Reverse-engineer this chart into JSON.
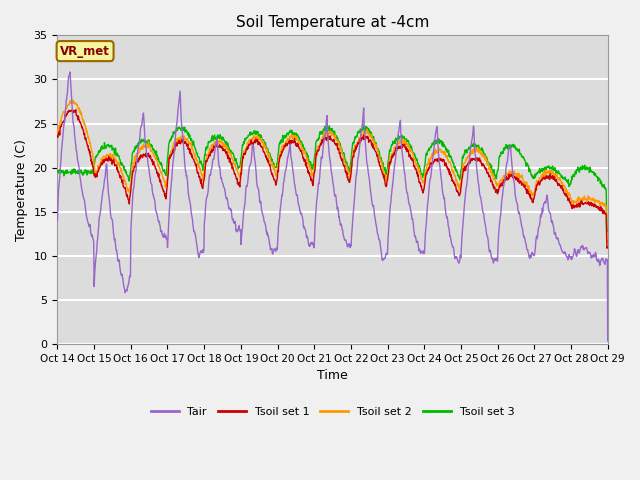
{
  "title": "Soil Temperature at -4cm",
  "xlabel": "Time",
  "ylabel": "Temperature (C)",
  "ylim": [
    0,
    35
  ],
  "background_color": "#dcdcdc",
  "plot_bg_color": "#dcdcdc",
  "grid_color": "white",
  "annotation_text": "VR_met",
  "annotation_bg": "#f5f5a0",
  "annotation_border": "#996600",
  "line_colors": {
    "Tair": "#9966cc",
    "Tsoil set 1": "#cc0000",
    "Tsoil set 2": "#ff9900",
    "Tsoil set 3": "#00bb00"
  },
  "tick_labels": [
    "Oct 14",
    "Oct 15",
    "Oct 16",
    "Oct 17",
    "Oct 18",
    "Oct 19",
    "Oct 20",
    "Oct 21",
    "Oct 22",
    "Oct 23",
    "Oct 24",
    "Oct 25",
    "Oct 26",
    "Oct 27",
    "Oct 28",
    "Oct 29"
  ],
  "legend_entries": [
    "Tair",
    "Tsoil set 1",
    "Tsoil set 2",
    "Tsoil set 3"
  ],
  "figsize": [
    6.4,
    4.8
  ],
  "dpi": 100
}
